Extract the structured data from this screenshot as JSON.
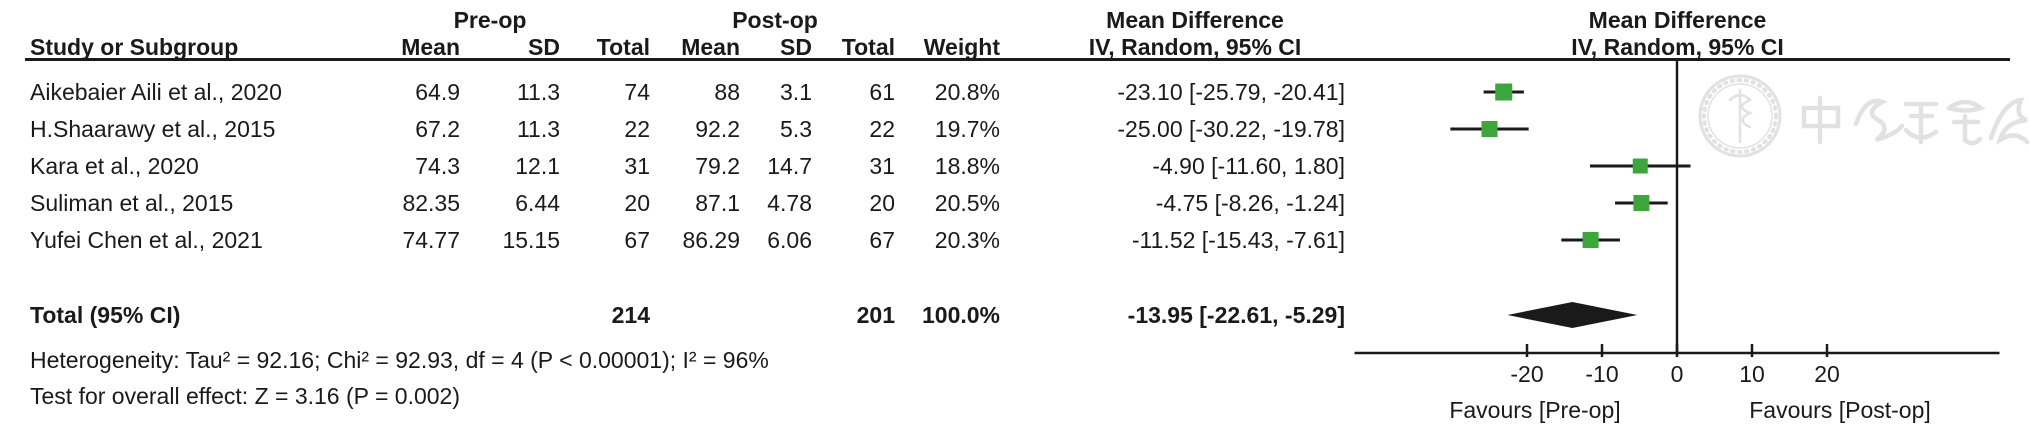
{
  "table": {
    "group_headers": {
      "pre": "Pre-op",
      "post": "Post-op",
      "md_text": "Mean Difference",
      "md_plot": "Mean Difference"
    },
    "col_headers": {
      "study": "Study or Subgroup",
      "mean_pre": "Mean",
      "sd_pre": "SD",
      "total_pre": "Total",
      "mean_post": "Mean",
      "sd_post": "SD",
      "total_post": "Total",
      "weight": "Weight",
      "iv_text": "IV, Random, 95% CI",
      "iv_plot": "IV, Random, 95% CI"
    }
  },
  "chart_data": {
    "type": "forest",
    "effect_measure": "Mean Difference",
    "model": "IV, Random, 95% CI",
    "studies": [
      {
        "name": "Aikebaier Aili et al., 2020",
        "pre_mean": "64.9",
        "pre_sd": "11.3",
        "pre_total": "74",
        "post_mean": "88",
        "post_sd": "3.1",
        "post_total": "61",
        "weight": "20.8%",
        "weight_val": 20.8,
        "md": -23.1,
        "ci_low": -25.79,
        "ci_high": -20.41,
        "ci_label": "-23.10 [-25.79, -20.41]"
      },
      {
        "name": "H.Shaarawy et al., 2015",
        "pre_mean": "67.2",
        "pre_sd": "11.3",
        "pre_total": "22",
        "post_mean": "92.2",
        "post_sd": "5.3",
        "post_total": "22",
        "weight": "19.7%",
        "weight_val": 19.7,
        "md": -25.0,
        "ci_low": -30.22,
        "ci_high": -19.78,
        "ci_label": "-25.00 [-30.22, -19.78]"
      },
      {
        "name": "Kara et al., 2020",
        "pre_mean": "74.3",
        "pre_sd": "12.1",
        "pre_total": "31",
        "post_mean": "79.2",
        "post_sd": "14.7",
        "post_total": "31",
        "weight": "18.8%",
        "weight_val": 18.8,
        "md": -4.9,
        "ci_low": -11.6,
        "ci_high": 1.8,
        "ci_label": "-4.90 [-11.60, 1.80]"
      },
      {
        "name": "Suliman et al., 2015",
        "pre_mean": "82.35",
        "pre_sd": "6.44",
        "pre_total": "20",
        "post_mean": "87.1",
        "post_sd": "4.78",
        "post_total": "20",
        "weight": "20.5%",
        "weight_val": 20.5,
        "md": -4.75,
        "ci_low": -8.26,
        "ci_high": -1.24,
        "ci_label": "-4.75 [-8.26, -1.24]"
      },
      {
        "name": "Yufei Chen et al., 2021",
        "pre_mean": "74.77",
        "pre_sd": "15.15",
        "pre_total": "67",
        "post_mean": "86.29",
        "post_sd": "6.06",
        "post_total": "67",
        "weight": "20.3%",
        "weight_val": 20.3,
        "md": -11.52,
        "ci_low": -15.43,
        "ci_high": -7.61,
        "ci_label": "-11.52 [-15.43, -7.61]"
      }
    ],
    "total": {
      "label": "Total (95% CI)",
      "pre_total": "214",
      "post_total": "201",
      "weight": "100.0%",
      "md": -13.95,
      "ci_low": -22.61,
      "ci_high": -5.29,
      "ci_label": "-13.95 [-22.61, -5.29]"
    },
    "heterogeneity": "Heterogeneity: Tau² = 92.16; Chi² = 92.93, df = 4 (P < 0.00001); I² = 96%",
    "overall_effect": "Test for overall effect: Z = 3.16 (P = 0.002)",
    "axis": {
      "ticks": [
        -20,
        -10,
        0,
        10,
        20
      ],
      "tick_labels": [
        "-20",
        "-10",
        "0",
        "10",
        "20"
      ],
      "min": -43,
      "max": 43
    },
    "favours_left": "Favours [Pre-op]",
    "favours_right": "Favours [Post-op]",
    "marker_color": "#3BA63A",
    "line_color": "#1a1a1a"
  },
  "watermark": {
    "description": "中华医学会 (Chinese Medical Association) seal watermark"
  }
}
